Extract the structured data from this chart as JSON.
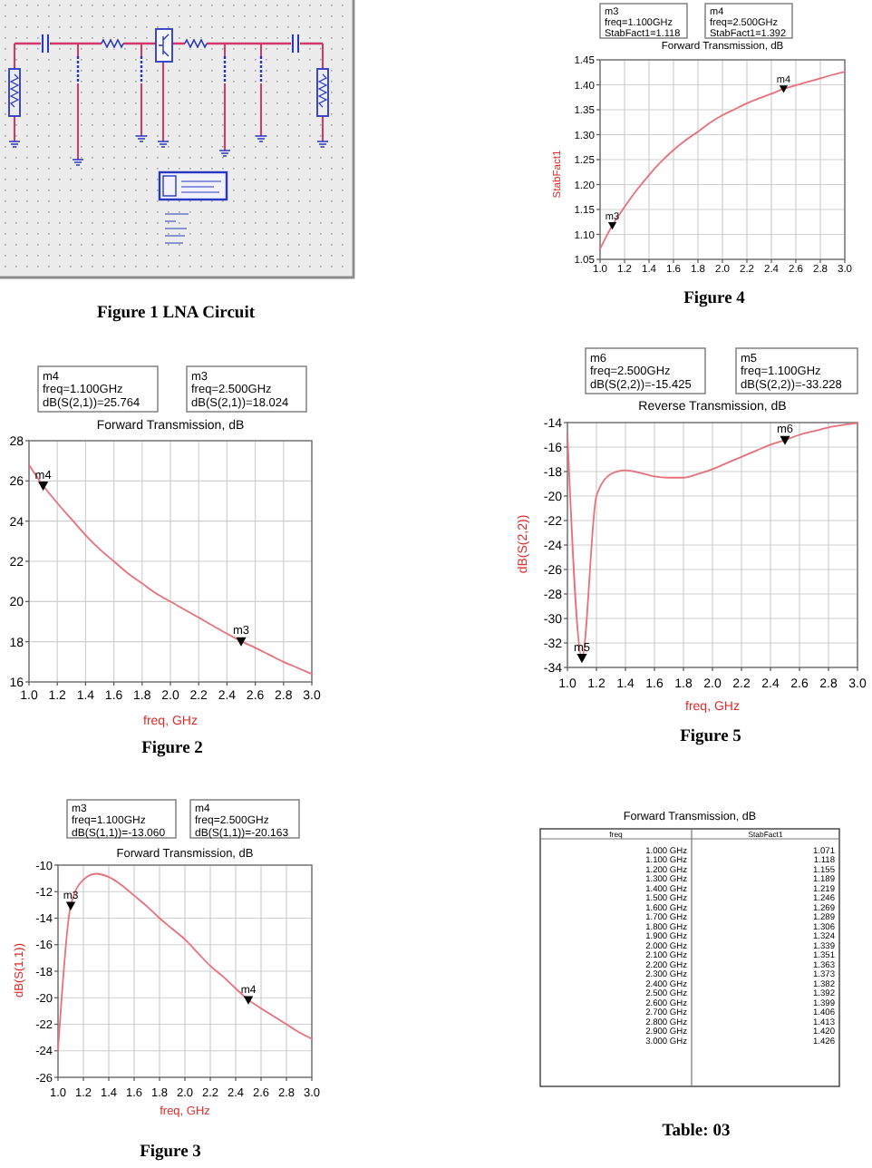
{
  "chart_data": [
    {
      "type": "other",
      "annotations": [
        "Figure 1 LNA Circuit"
      ]
    },
    {
      "type": "line",
      "title": "Forward Transmission, dB",
      "ylabel": "StabFact1",
      "x": [
        1,
        1.1,
        1.2,
        1.3,
        1.4,
        1.5,
        1.6,
        1.7,
        1.8,
        1.9,
        2,
        2.1,
        2.2,
        2.3,
        2.4,
        2.5,
        2.6,
        2.7,
        2.8,
        2.9,
        3
      ],
      "series": [
        {
          "color": "#e8707a",
          "values": [
            1.071,
            1.118,
            1.155,
            1.189,
            1.219,
            1.246,
            1.269,
            1.289,
            1.306,
            1.324,
            1.339,
            1.351,
            1.363,
            1.373,
            1.382,
            1.392,
            1.399,
            1.406,
            1.413,
            1.42,
            1.426
          ]
        },
        {
          "type": "scatter",
          "marker": "triangle",
          "color": "#000000",
          "values": [
            null,
            1.118,
            null,
            null,
            null,
            null,
            null,
            null,
            null,
            null,
            null,
            null,
            null,
            null,
            null,
            1.392,
            null,
            null,
            null,
            null,
            null
          ],
          "value_labels": [
            null,
            "m3",
            null,
            null,
            null,
            null,
            null,
            null,
            null,
            null,
            null,
            null,
            null,
            null,
            null,
            "m4",
            null,
            null,
            null,
            null,
            null
          ]
        }
      ],
      "xlim": [
        1,
        3
      ],
      "ylim": [
        1.05,
        1.45
      ],
      "xticks": [
        {
          "value": 1,
          "label": "1.0"
        },
        1.2,
        1.4,
        1.6,
        1.8,
        {
          "value": 2,
          "label": "2.0"
        },
        2.2,
        2.4,
        2.6,
        2.8,
        {
          "value": 3,
          "label": "3.0"
        }
      ],
      "yticks": [
        1.05,
        {
          "value": 1.1,
          "label": "1.10"
        },
        1.15,
        {
          "value": 1.2,
          "label": "1.20"
        },
        1.25,
        {
          "value": 1.3,
          "label": "1.30"
        },
        1.35,
        {
          "value": 1.4,
          "label": "1.40"
        },
        1.45
      ],
      "grid": true,
      "annotations": [
        "m3\nfreq=1.100GHz\nStabFact1=1.118",
        "m4\nfreq=2.500GHz\nStabFact1=1.392",
        "Figure 4"
      ]
    },
    {
      "type": "line",
      "title": "Forward Transmission, dB",
      "xlabel": "freq, GHz",
      "x": [
        1,
        1.1,
        1.2,
        1.3,
        1.4,
        1.5,
        1.6,
        1.7,
        1.8,
        1.9,
        2,
        2.1,
        2.2,
        2.3,
        2.4,
        2.5,
        2.6,
        2.7,
        2.8,
        2.9,
        3
      ],
      "series": [
        {
          "color": "#e8707a",
          "values": [
            26.8,
            25.764,
            24.9,
            24.1,
            23.3,
            22.6,
            22.0,
            21.4,
            20.9,
            20.4,
            20.0,
            19.6,
            19.2,
            18.8,
            18.4,
            18.024,
            17.7,
            17.35,
            17.0,
            16.7,
            16.4
          ]
        },
        {
          "type": "scatter",
          "marker": "triangle",
          "color": "#000000",
          "values": [
            null,
            25.764,
            null,
            null,
            null,
            null,
            null,
            null,
            null,
            null,
            null,
            null,
            null,
            null,
            null,
            18.024,
            null,
            null,
            null,
            null,
            null
          ],
          "value_labels": [
            null,
            "m4",
            null,
            null,
            null,
            null,
            null,
            null,
            null,
            null,
            null,
            null,
            null,
            null,
            null,
            "m3",
            null,
            null,
            null,
            null,
            null
          ]
        }
      ],
      "xlim": [
        1,
        3
      ],
      "ylim": [
        16,
        28
      ],
      "xticks": [
        {
          "value": 1,
          "label": "1.0"
        },
        1.2,
        1.4,
        1.6,
        1.8,
        {
          "value": 2,
          "label": "2.0"
        },
        2.2,
        2.4,
        2.6,
        2.8,
        {
          "value": 3,
          "label": "3.0"
        }
      ],
      "yticks": [
        16,
        18,
        20,
        22,
        24,
        26,
        28
      ],
      "grid": true,
      "annotations": [
        "m4\nfreq=1.100GHz\ndB(S(2,1))=25.764",
        "m3\nfreq=2.500GHz\ndB(S(2,1))=18.024",
        "Figure 2"
      ]
    },
    {
      "type": "line",
      "title": "Reverse Transmission, dB",
      "xlabel": "freq, GHz",
      "ylabel": "dB(S(2,2))",
      "x": [
        1,
        1.1,
        1.2,
        1.3,
        1.4,
        1.5,
        1.6,
        1.7,
        1.8,
        1.9,
        2,
        2.1,
        2.2,
        2.3,
        2.4,
        2.5,
        2.6,
        2.7,
        2.8,
        2.9,
        3
      ],
      "series": [
        {
          "color": "#e8707a",
          "values": [
            -14.9,
            -33.228,
            -20.0,
            -18.2,
            -17.9,
            -18.1,
            -18.4,
            -18.5,
            -18.5,
            -18.2,
            -17.8,
            -17.3,
            -16.8,
            -16.3,
            -15.8,
            -15.425,
            -15.0,
            -14.7,
            -14.4,
            -14.2,
            -14.05
          ]
        },
        {
          "type": "scatter",
          "marker": "triangle",
          "color": "#000000",
          "values": [
            null,
            -33.228,
            null,
            null,
            null,
            null,
            null,
            null,
            null,
            null,
            null,
            null,
            null,
            null,
            null,
            -15.425,
            null,
            null,
            null,
            null,
            null
          ],
          "value_labels": [
            null,
            "m5",
            null,
            null,
            null,
            null,
            null,
            null,
            null,
            null,
            null,
            null,
            null,
            null,
            null,
            "m6",
            null,
            null,
            null,
            null,
            null
          ]
        }
      ],
      "xlim": [
        1,
        3
      ],
      "ylim": [
        -34,
        -14
      ],
      "xticks": [
        {
          "value": 1,
          "label": "1.0"
        },
        1.2,
        1.4,
        1.6,
        1.8,
        {
          "value": 2,
          "label": "2.0"
        },
        2.2,
        2.4,
        2.6,
        2.8,
        {
          "value": 3,
          "label": "3.0"
        }
      ],
      "yticks": [
        -34,
        -32,
        -30,
        -28,
        -26,
        -24,
        -22,
        -20,
        -18,
        -16,
        -14
      ],
      "grid": true,
      "annotations": [
        "m6\nfreq=2.500GHz\ndB(S(2,2))=-15.425",
        "m5\nfreq=1.100GHz\ndB(S(2,2))=-33.228",
        "Figure 5"
      ]
    },
    {
      "type": "line",
      "title": "Forward Transmission, dB",
      "xlabel": "freq, GHz",
      "ylabel": "dB(S(1,1))",
      "x": [
        1,
        1.1,
        1.2,
        1.3,
        1.4,
        1.5,
        1.6,
        1.7,
        1.8,
        1.9,
        2,
        2.1,
        2.2,
        2.3,
        2.4,
        2.5,
        2.6,
        2.7,
        2.8,
        2.9,
        3
      ],
      "series": [
        {
          "color": "#e8707a",
          "values": [
            -24.0,
            -13.06,
            -11.1,
            -10.65,
            -10.9,
            -11.5,
            -12.3,
            -13.1,
            -14.0,
            -14.8,
            -15.6,
            -16.6,
            -17.6,
            -18.4,
            -19.3,
            -20.163,
            -20.8,
            -21.4,
            -22.0,
            -22.6,
            -23.1
          ]
        },
        {
          "type": "scatter",
          "marker": "triangle",
          "color": "#000000",
          "values": [
            null,
            -13.06,
            null,
            null,
            null,
            null,
            null,
            null,
            null,
            null,
            null,
            null,
            null,
            null,
            null,
            -20.163,
            null,
            null,
            null,
            null,
            null
          ],
          "value_labels": [
            null,
            "m3",
            null,
            null,
            null,
            null,
            null,
            null,
            null,
            null,
            null,
            null,
            null,
            null,
            null,
            "m4",
            null,
            null,
            null,
            null,
            null
          ]
        }
      ],
      "xlim": [
        1,
        3
      ],
      "ylim": [
        -26,
        -10
      ],
      "xticks": [
        {
          "value": 1,
          "label": "1.0"
        },
        1.2,
        1.4,
        1.6,
        1.8,
        {
          "value": 2,
          "label": "2.0"
        },
        2.2,
        2.4,
        2.6,
        2.8,
        {
          "value": 3,
          "label": "3.0"
        }
      ],
      "yticks": [
        -26,
        -24,
        -22,
        -20,
        -18,
        -16,
        -14,
        -12,
        -10
      ],
      "grid": true,
      "annotations": [
        "m3\nfreq=1.100GHz\ndB(S(1,1))=-13.060",
        "m4\nfreq=2.500GHz\ndB(S(1,1))=-20.163",
        "Figure 3"
      ]
    },
    {
      "type": "other",
      "title": "Forward Transmission, dB",
      "xlabel": "freq",
      "ylabel": "StabFact1",
      "categories": [
        "1.000 GHz",
        "1.100 GHz",
        "1.200 GHz",
        "1.300 GHz",
        "1.400 GHz",
        "1.500 GHz",
        "1.600 GHz",
        "1.700 GHz",
        "1.800 GHz",
        "1.900 GHz",
        "2.000 GHz",
        "2.100 GHz",
        "2.200 GHz",
        "2.300 GHz",
        "2.400 GHz",
        "2.500 GHz",
        "2.600 GHz",
        "2.700 GHz",
        "2.800 GHz",
        "2.900 GHz",
        "3.000 GHz"
      ],
      "values": [
        1.071,
        1.118,
        1.155,
        1.189,
        1.219,
        1.246,
        1.269,
        1.289,
        1.306,
        1.324,
        1.339,
        1.351,
        1.363,
        1.373,
        1.382,
        1.392,
        1.399,
        1.406,
        1.413,
        1.42,
        1.426
      ],
      "value_labels": [
        "1.071",
        "1.118",
        "1.155",
        "1.189",
        "1.219",
        "1.246",
        "1.269",
        "1.289",
        "1.306",
        "1.324",
        "1.339",
        "1.351",
        "1.363",
        "1.373",
        "1.382",
        "1.392",
        "1.399",
        "1.406",
        "1.413",
        "1.420",
        "1.426"
      ],
      "annotations": [
        "Table: 03"
      ]
    }
  ]
}
